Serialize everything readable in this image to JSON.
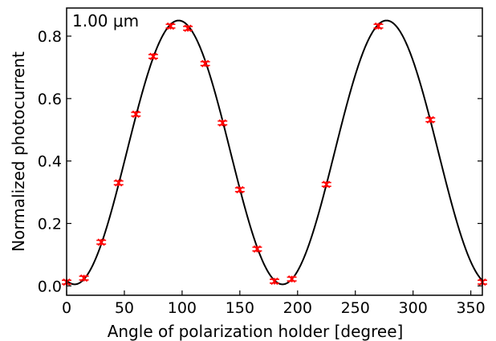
{
  "chart_data": {
    "type": "scatter",
    "title": "",
    "annotation": "1.00 μm",
    "xlabel": "Angle of polarization holder [degree]",
    "ylabel": "Normalized photocurrent",
    "xlim": [
      0,
      360
    ],
    "ylim": [
      -0.03,
      0.89
    ],
    "xticks": [
      0,
      50,
      100,
      150,
      200,
      250,
      300,
      350
    ],
    "yticks": [
      0.0,
      0.2,
      0.4,
      0.6,
      0.8
    ],
    "ytick_labels": [
      "0.0",
      "0.2",
      "0.4",
      "0.6",
      "0.8"
    ],
    "grid": false,
    "colors": {
      "points": "#ff0000",
      "fit": "#000000",
      "axes": "#000000"
    },
    "series": [
      {
        "kind": "measurement-with-error-bars",
        "x": [
          0,
          15,
          30,
          45,
          60,
          75,
          90,
          105,
          120,
          135,
          150,
          165,
          180,
          195,
          225,
          270,
          315,
          360
        ],
        "y": [
          0.012,
          0.025,
          0.14,
          0.33,
          0.55,
          0.735,
          0.832,
          0.825,
          0.712,
          0.522,
          0.308,
          0.118,
          0.015,
          0.022,
          0.325,
          0.832,
          0.532,
          0.012
        ],
        "yerr": [
          0.006,
          0.006,
          0.006,
          0.006,
          0.006,
          0.006,
          0.006,
          0.006,
          0.006,
          0.006,
          0.006,
          0.006,
          0.006,
          0.006,
          0.006,
          0.006,
          0.006,
          0.006
        ]
      },
      {
        "kind": "fit-curve",
        "model": "offset + amplitude * sin^2(x - phase)",
        "offset": 0.005,
        "amplitude": 0.845,
        "phase_deg": 7
      }
    ]
  }
}
